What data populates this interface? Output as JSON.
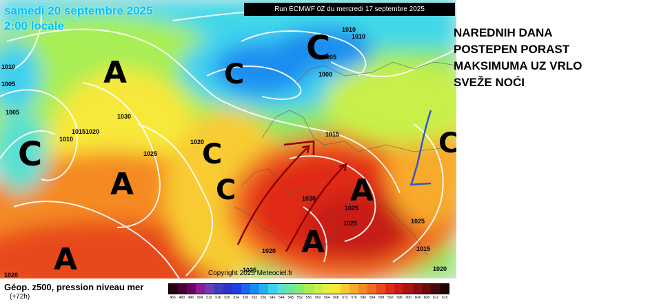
{
  "header": {
    "title": "samedi 20 septembre 2025",
    "time": "2:00 locale",
    "run": "Run ECMWF 0Z du mercredi 17 septembre 2025"
  },
  "copyright": "Copyright 2025 Meteociel.fr",
  "annotation": {
    "lines": [
      "NAREDNIH DANA",
      "POSTEPEN PORAST",
      "MAKSIMUMA UZ VRLO",
      "SVEŽE NOĆI"
    ]
  },
  "footer": {
    "label": "Géop. z500, pression niveau mer",
    "sub": "(+72h)"
  },
  "scale": {
    "values": [
      "456",
      "480",
      "496",
      "504",
      "512",
      "516",
      "520",
      "524",
      "528",
      "532",
      "536",
      "540",
      "544",
      "548",
      "552",
      "556",
      "560",
      "564",
      "568",
      "572",
      "576",
      "580",
      "584",
      "588",
      "592",
      "596",
      "600",
      "604",
      "608",
      "612",
      "615"
    ],
    "colors": [
      "#2a0010",
      "#4b0033",
      "#6d0066",
      "#8a1a99",
      "#6b3fb3",
      "#3d3dbf",
      "#2a33cc",
      "#1f3fe0",
      "#1a66ee",
      "#1a8cf0",
      "#23b0f5",
      "#3fd0f0",
      "#5ae0d0",
      "#6ee6a0",
      "#88ec70",
      "#a8ee55",
      "#c8f048",
      "#e6f040",
      "#f8e83a",
      "#f8cc30",
      "#f8aa2a",
      "#f58a24",
      "#f06a20",
      "#e84a1c",
      "#e02a18",
      "#c81a14",
      "#a81412",
      "#881010",
      "#680c0c",
      "#480808",
      "#200404"
    ]
  },
  "systems": [
    {
      "type": "A",
      "label": "A"
    },
    {
      "type": "A",
      "label": "A"
    },
    {
      "type": "A",
      "label": "A"
    },
    {
      "type": "A",
      "label": "A"
    },
    {
      "type": "A",
      "label": "A"
    },
    {
      "type": "C",
      "label": "C"
    },
    {
      "type": "C",
      "label": "C"
    },
    {
      "type": "C",
      "label": "C"
    },
    {
      "type": "C",
      "label": "C"
    },
    {
      "type": "C",
      "label": "C"
    },
    {
      "type": "C",
      "label": "C"
    }
  ],
  "isobars": [
    "1010",
    "1010",
    "1005",
    "1005",
    "1010",
    "1000",
    "1005",
    "1030",
    "1015",
    "1020",
    "1010",
    "1020",
    "1025",
    "1015",
    "1030",
    "1025",
    "1025",
    "1025",
    "1015",
    "1020",
    "1020",
    "1025",
    "1020"
  ],
  "icons": {
    "arrows": "red-arrow-icon",
    "front": "blue-front-icon"
  }
}
